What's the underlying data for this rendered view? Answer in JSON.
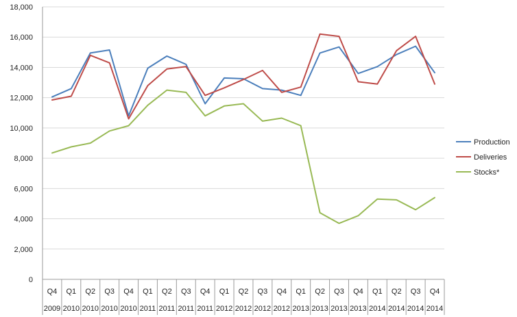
{
  "chart_data": {
    "type": "line",
    "title": "",
    "xlabel": "",
    "ylabel": "",
    "ylim": [
      0,
      18000
    ],
    "yticks": [
      "0",
      "2,000",
      "4,000",
      "6,000",
      "8,000",
      "10,000",
      "12,000",
      "14,000",
      "16,000",
      "18,000"
    ],
    "grid": true,
    "legend_position": "right",
    "categories": [
      {
        "q": "Q4",
        "y": "2009"
      },
      {
        "q": "Q1",
        "y": "2010"
      },
      {
        "q": "Q2",
        "y": "2010"
      },
      {
        "q": "Q3",
        "y": "2010"
      },
      {
        "q": "Q4",
        "y": "2010"
      },
      {
        "q": "Q1",
        "y": "2011"
      },
      {
        "q": "Q2",
        "y": "2011"
      },
      {
        "q": "Q3",
        "y": "2011"
      },
      {
        "q": "Q4",
        "y": "2011"
      },
      {
        "q": "Q1",
        "y": "2012"
      },
      {
        "q": "Q2",
        "y": "2012"
      },
      {
        "q": "Q3",
        "y": "2012"
      },
      {
        "q": "Q4",
        "y": "2012"
      },
      {
        "q": "Q1",
        "y": "2013"
      },
      {
        "q": "Q2",
        "y": "2013"
      },
      {
        "q": "Q3",
        "y": "2013"
      },
      {
        "q": "Q4",
        "y": "2013"
      },
      {
        "q": "Q1",
        "y": "2014"
      },
      {
        "q": "Q2",
        "y": "2014"
      },
      {
        "q": "Q3",
        "y": "2014"
      },
      {
        "q": "Q4",
        "y": "2014"
      }
    ],
    "series": [
      {
        "name": "Production",
        "color": "#4a7ebb",
        "values": [
          12050,
          12600,
          14950,
          15150,
          10800,
          13950,
          14750,
          14200,
          11600,
          13300,
          13250,
          12600,
          12500,
          12150,
          14950,
          15350,
          13600,
          14050,
          14850,
          15400,
          13650
        ]
      },
      {
        "name": "Deliveries",
        "color": "#be4b48",
        "values": [
          11850,
          12100,
          14800,
          14300,
          10600,
          12800,
          13900,
          14050,
          12150,
          12650,
          13200,
          13800,
          12350,
          12700,
          16200,
          16050,
          13050,
          12900,
          15100,
          16050,
          12900
        ]
      },
      {
        "name": "Stocks*",
        "color": "#98b954",
        "values": [
          8350,
          8750,
          9000,
          9800,
          10150,
          11500,
          12500,
          12350,
          10800,
          11450,
          11600,
          10450,
          10650,
          10150,
          4400,
          3700,
          4200,
          5300,
          5250,
          4600,
          5400
        ]
      }
    ]
  }
}
